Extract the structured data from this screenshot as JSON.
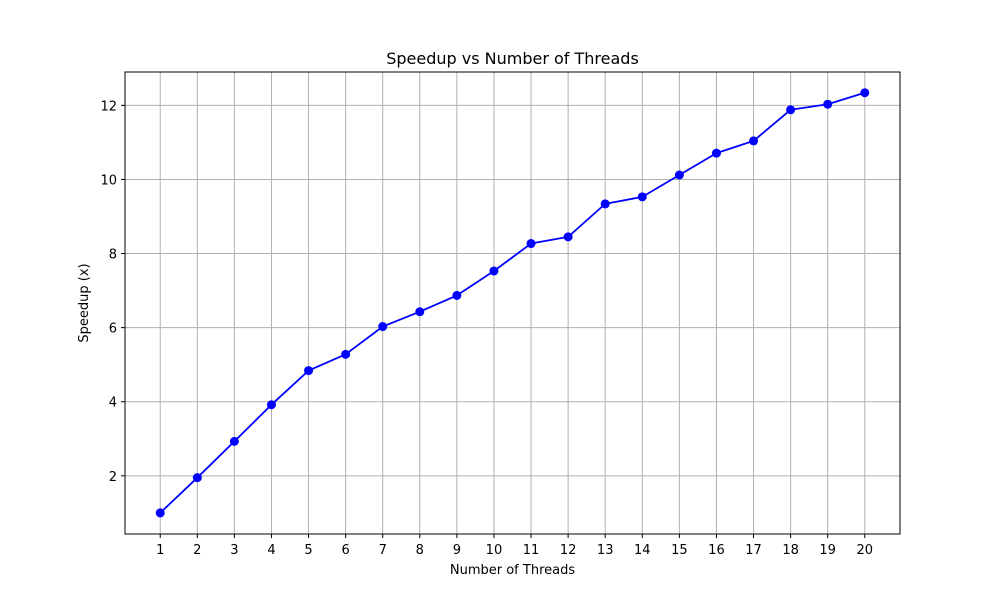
{
  "chart_data": {
    "type": "line",
    "title": "Speedup vs Number of Threads",
    "xlabel": "Number of Threads",
    "ylabel": "Speedup (x)",
    "x": [
      1,
      2,
      3,
      4,
      5,
      6,
      7,
      8,
      9,
      10,
      11,
      12,
      13,
      14,
      15,
      16,
      17,
      18,
      19,
      20
    ],
    "xticks": [
      1,
      2,
      3,
      4,
      5,
      6,
      7,
      8,
      9,
      10,
      11,
      12,
      13,
      14,
      15,
      16,
      17,
      18,
      19,
      20
    ],
    "yticks": [
      2,
      4,
      6,
      8,
      10,
      12
    ],
    "xlim": [
      0.05,
      20.95
    ],
    "ylim": [
      0.43,
      12.9
    ],
    "grid": true,
    "series": [
      {
        "color": "#0000ff",
        "marker": "circle",
        "values": [
          1.0,
          1.95,
          2.93,
          3.92,
          4.84,
          5.28,
          6.03,
          6.43,
          6.87,
          7.53,
          8.27,
          8.45,
          9.34,
          9.53,
          10.12,
          10.71,
          11.04,
          11.88,
          12.03,
          12.34
        ]
      }
    ]
  }
}
